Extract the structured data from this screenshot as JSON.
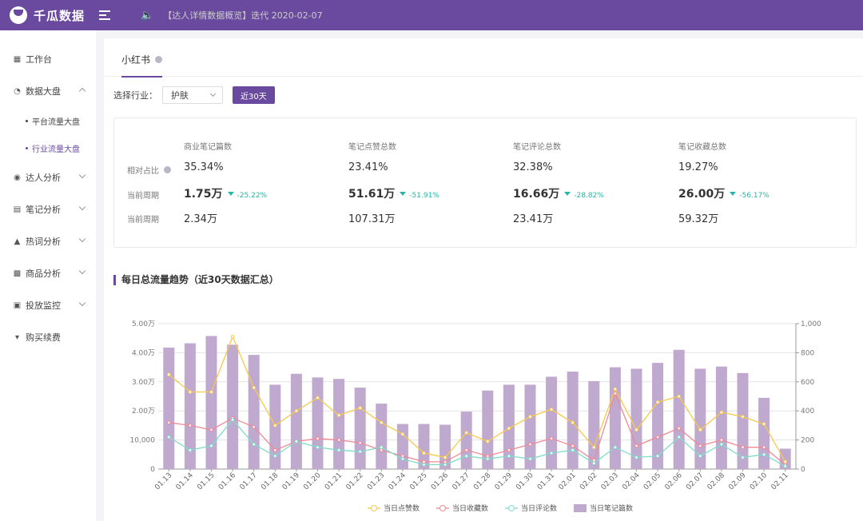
{
  "header": {
    "brand": "千瓜数据",
    "notice": "【达人详情数据概览】迭代  2020-02-07"
  },
  "sidebar": {
    "items": [
      {
        "label": "工作台",
        "icon": "grid-icon"
      },
      {
        "label": "数据大盘",
        "icon": "pie-chart-icon"
      },
      {
        "label": "平台流量大盘"
      },
      {
        "label": "行业流量大盘"
      },
      {
        "label": "达人分析",
        "icon": "user-icon"
      },
      {
        "label": "笔记分析",
        "icon": "note-icon"
      },
      {
        "label": "热词分析",
        "icon": "fire-icon"
      },
      {
        "label": "商品分析",
        "icon": "bar-chart-icon"
      },
      {
        "label": "投放监控",
        "icon": "monitor-icon"
      },
      {
        "label": "购买续费",
        "icon": "cart-icon"
      }
    ]
  },
  "tab": {
    "label": "小红书"
  },
  "filter": {
    "label": "选择行业：",
    "industry": "护肤",
    "range_button": "近30天"
  },
  "stats": {
    "headers": [
      "商业笔记篇数",
      "笔记点赞总数",
      "笔记评论总数",
      "笔记收藏总数"
    ],
    "row_labels": [
      "相对占比",
      "当前周期",
      "当前周期"
    ],
    "ratio": [
      "35.34%",
      "23.41%",
      "32.38%",
      "19.27%"
    ],
    "current": [
      {
        "value": "1.75万",
        "change": "-25.22%"
      },
      {
        "value": "51.61万",
        "change": "-51.91%"
      },
      {
        "value": "16.66万",
        "change": "-28.82%"
      },
      {
        "value": "26.00万",
        "change": "-56.17%"
      }
    ],
    "previous": [
      "2.34万",
      "107.31万",
      "23.41万",
      "59.32万"
    ]
  },
  "section": {
    "title": "每日总流量趋势（近30天数据汇总）"
  },
  "chart_data": {
    "type": "bar",
    "categories": [
      "01.13",
      "01.14",
      "01.15",
      "01.16",
      "01.17",
      "01.18",
      "01.19",
      "01.20",
      "01.21",
      "01.22",
      "01.23",
      "01.24",
      "01.25",
      "01.26",
      "01.27",
      "01.28",
      "01.29",
      "01.30",
      "01.31",
      "02.01",
      "02.02",
      "02.03",
      "02.04",
      "02.05",
      "02.06",
      "02.07",
      "02.08",
      "02.09",
      "02.10",
      "02.11"
    ],
    "left_axis": {
      "ticks": [
        "0",
        "10,000",
        "2.00万",
        "3.00万",
        "4.00万",
        "5.00万"
      ],
      "max": 50000
    },
    "right_axis": {
      "ticks": [
        "0",
        "200",
        "400",
        "600",
        "800",
        "1,000"
      ],
      "max": 1000
    },
    "series": [
      {
        "name": "当日点赞数",
        "type": "line",
        "axis": "left",
        "color": "#f7c94b",
        "values": [
          32500,
          26500,
          26500,
          45500,
          28000,
          15000,
          20000,
          24500,
          18500,
          21000,
          16000,
          12000,
          5500,
          4000,
          12500,
          9500,
          14000,
          18000,
          20500,
          16000,
          7500,
          27500,
          13500,
          23000,
          25000,
          13500,
          19500,
          18000,
          15500,
          2500
        ]
      },
      {
        "name": "当日收藏数",
        "type": "line",
        "axis": "left",
        "color": "#ef8a94",
        "values": [
          16000,
          15000,
          13500,
          17500,
          14500,
          6500,
          9500,
          10500,
          10000,
          9000,
          6500,
          4500,
          2500,
          2500,
          6500,
          4500,
          6500,
          8500,
          10500,
          8000,
          3000,
          26000,
          8000,
          11000,
          14000,
          8000,
          10000,
          7500,
          7500,
          1500
        ]
      },
      {
        "name": "当日评论数",
        "type": "line",
        "axis": "left",
        "color": "#7fdcc9",
        "values": [
          11000,
          6500,
          8000,
          17000,
          8500,
          4500,
          9500,
          7500,
          6500,
          6000,
          7500,
          3500,
          1500,
          1500,
          4500,
          3500,
          4500,
          3500,
          5500,
          6500,
          2000,
          7500,
          4000,
          4500,
          11000,
          4500,
          8500,
          4000,
          5000,
          1000
        ]
      },
      {
        "name": "当日笔记篇数",
        "type": "bar",
        "axis": "right",
        "color": "#c0a9cf",
        "values": [
          835,
          865,
          915,
          855,
          785,
          580,
          655,
          630,
          620,
          560,
          450,
          310,
          310,
          305,
          395,
          540,
          580,
          580,
          635,
          670,
          605,
          700,
          690,
          730,
          820,
          690,
          705,
          660,
          490,
          140
        ]
      }
    ],
    "legend_position": "bottom",
    "grid": true
  }
}
